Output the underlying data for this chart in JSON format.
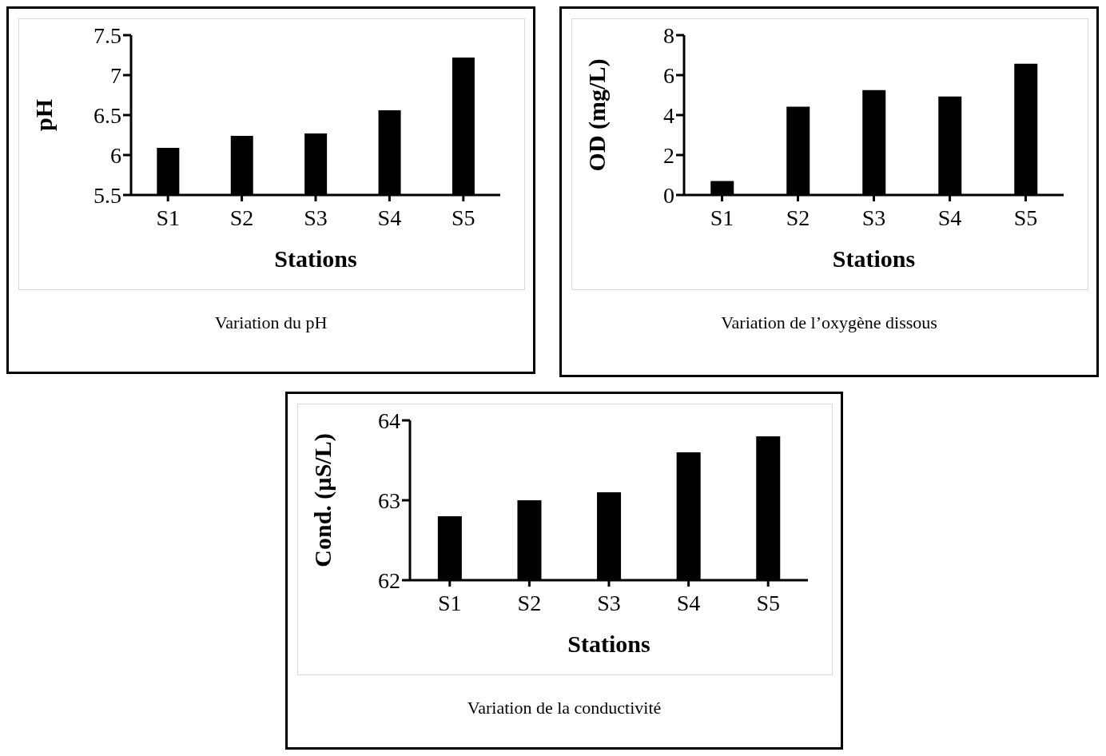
{
  "chart_data": [
    {
      "type": "bar",
      "xlabel": "Stations",
      "ylabel": "pH",
      "categories": [
        "S1",
        "S2",
        "S3",
        "S4",
        "S5"
      ],
      "values": [
        6.09,
        6.24,
        6.27,
        6.56,
        7.22
      ],
      "color": "#000000",
      "ylim": [
        5.5,
        7.5
      ],
      "yticks": [
        5.5,
        6,
        6.5,
        7,
        7.5
      ],
      "annotations": [
        "Variation du pH"
      ]
    },
    {
      "type": "bar",
      "xlabel": "Stations",
      "ylabel": "OD (mg/L)",
      "categories": [
        "S1",
        "S2",
        "S3",
        "S4",
        "S5"
      ],
      "values": [
        0.7,
        4.42,
        5.25,
        4.93,
        6.57
      ],
      "color": "#000000",
      "ylim": [
        0,
        8
      ],
      "yticks": [
        0,
        2,
        4,
        6,
        8
      ],
      "annotations": [
        "Variation de l’oxygène dissous"
      ]
    },
    {
      "type": "bar",
      "xlabel": "Stations",
      "ylabel": "Cond. (µS/L)",
      "categories": [
        "S1",
        "S2",
        "S3",
        "S4",
        "S5"
      ],
      "values": [
        62.8,
        63.0,
        63.1,
        63.6,
        63.8
      ],
      "color": "#000000",
      "ylim": [
        62,
        64
      ],
      "yticks": [
        62,
        63,
        64
      ],
      "annotations": [
        "Variation de la conductivité"
      ]
    }
  ]
}
